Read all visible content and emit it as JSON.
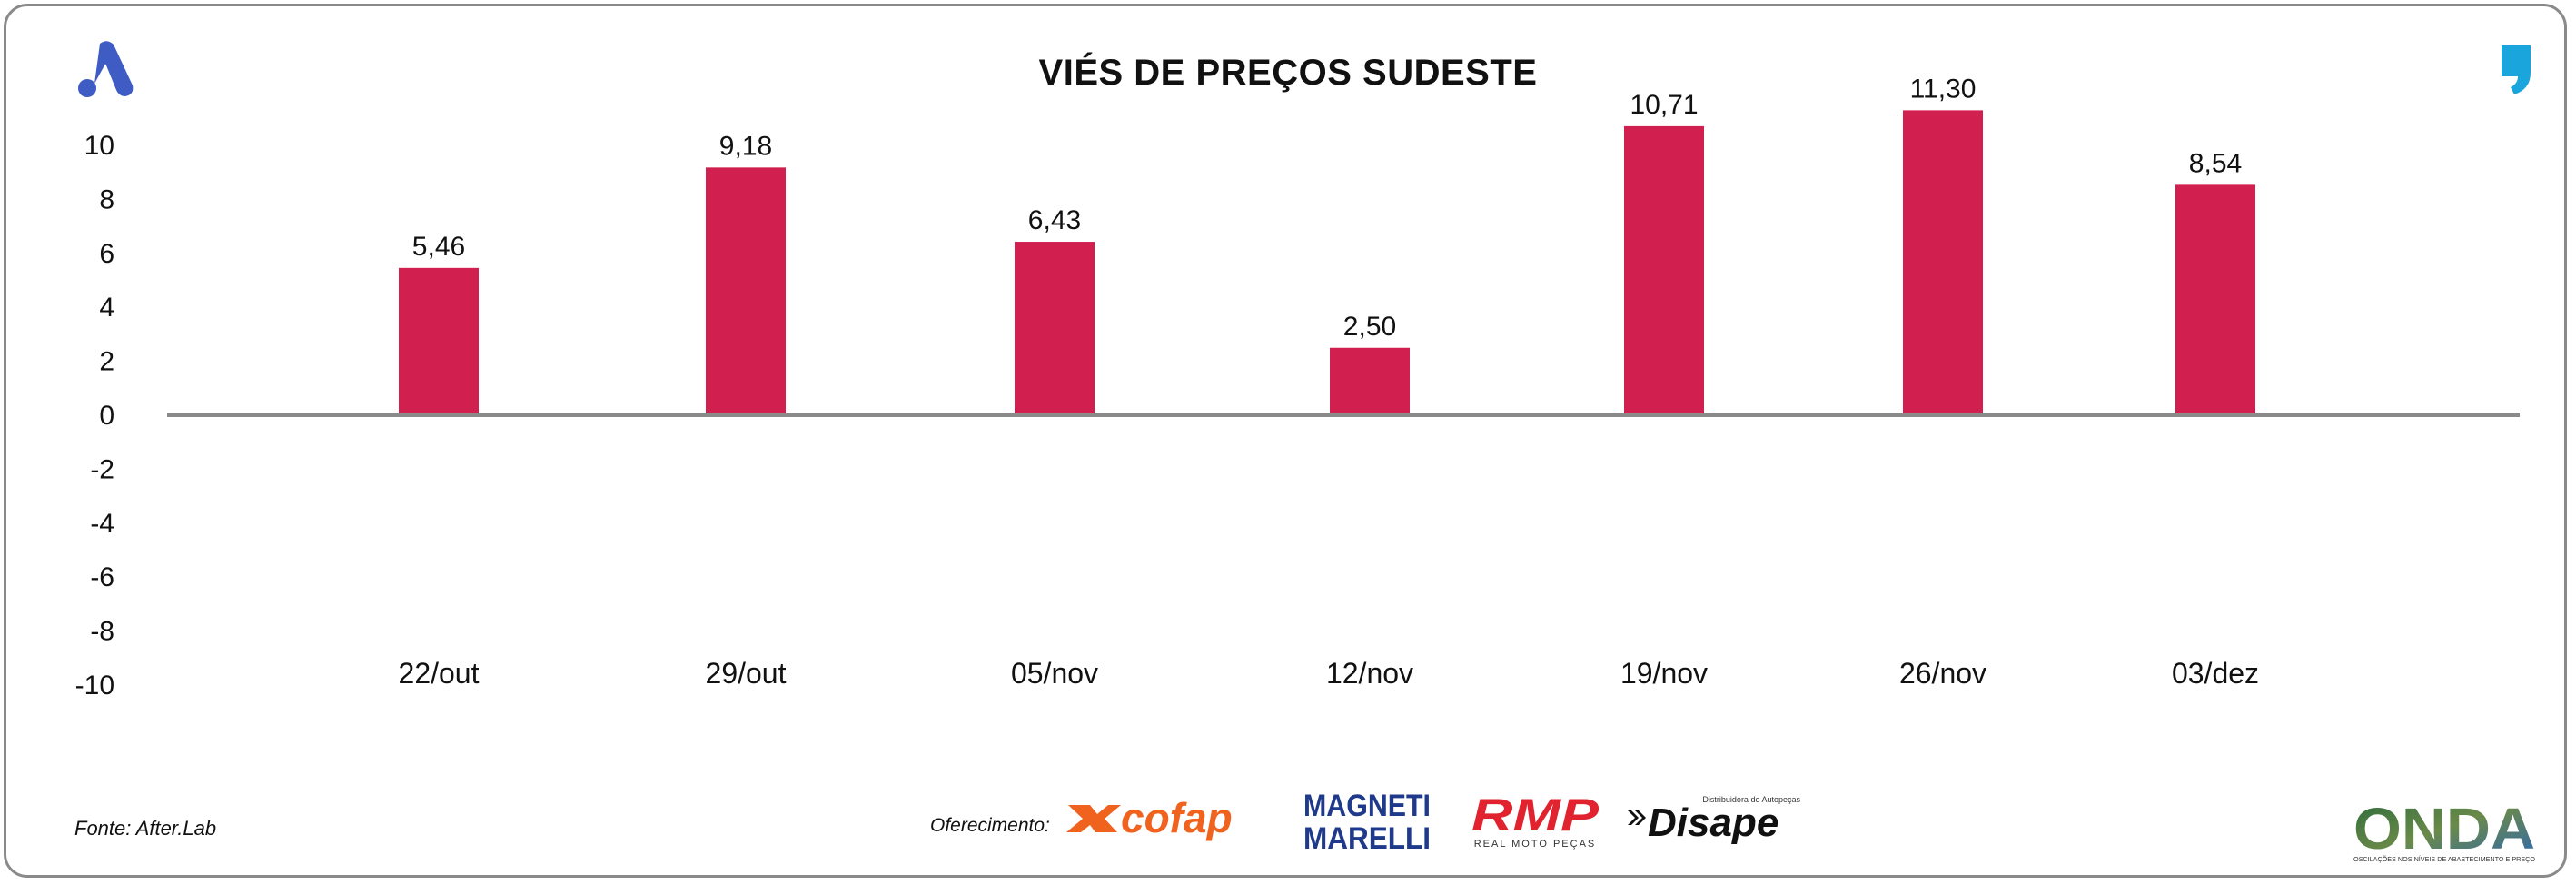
{
  "title": "VIÉS DE PREÇOS SUDESTE",
  "source": "Fonte: After.Lab",
  "sponsor_label": "Oferecimento:",
  "sponsors": [
    {
      "name": "cofap",
      "text": "cofap",
      "color": "#f0631e"
    },
    {
      "name": "magneti-marelli",
      "text": "MAGNETI MARELLI",
      "line1": "MAGNETI",
      "line2": "MARELLI",
      "color": "#1f3a8a"
    },
    {
      "name": "rmp",
      "text": "RMP",
      "subtext": "REAL MOTO PEÇAS",
      "color": "#e0232e"
    },
    {
      "name": "disape",
      "text": "Disape",
      "subtext": "Distribuidora de Autopeças",
      "color": "#111111"
    }
  ],
  "onda": {
    "text": "ONDA",
    "subtext": "OSCILAÇÕES NOS NÍVEIS DE ABASTECIMENTO E PREÇO"
  },
  "colors": {
    "bar": "#d1204f",
    "axis": "#8a8a8a",
    "brand_blue": "#3f5bc4",
    "brand_cyan": "#1aa6dc"
  },
  "icons": {
    "left": "after-lab-logo-icon",
    "right": "quote-mark-icon"
  },
  "chart_data": {
    "type": "bar",
    "title": "VIÉS DE PREÇOS SUDESTE",
    "categories": [
      "22/out",
      "29/out",
      "05/nov",
      "12/nov",
      "19/nov",
      "26/nov",
      "03/dez"
    ],
    "values": [
      5.46,
      9.18,
      6.43,
      2.5,
      10.71,
      11.3,
      8.54
    ],
    "value_labels": [
      "5,46",
      "9,18",
      "6,43",
      "2,50",
      "10,71",
      "11,30",
      "8,54"
    ],
    "yticks": [
      10,
      8,
      6,
      4,
      2,
      0,
      -2,
      -4,
      -6,
      -8,
      -10
    ],
    "ylim": [
      -10,
      10
    ],
    "xlabel": "",
    "ylabel": "",
    "grid": false,
    "legend": "none"
  }
}
